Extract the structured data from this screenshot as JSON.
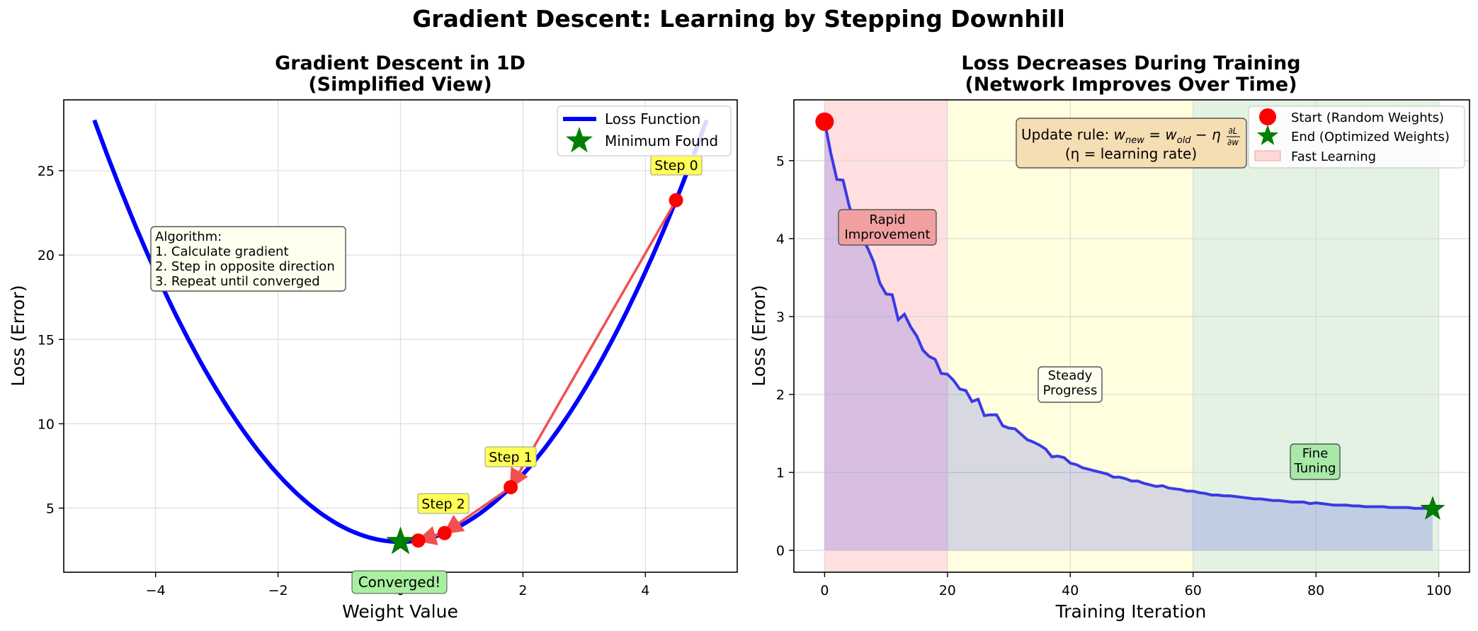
{
  "suptitle": "Gradient Descent: Learning by Stepping Downhill",
  "chart_data": [
    {
      "type": "line",
      "title_line1": "Gradient Descent in 1D",
      "title_line2": "(Simplified View)",
      "xlabel": "Weight Value",
      "ylabel": "Loss (Error)",
      "xlim": [
        -5.5,
        5.5
      ],
      "ylim": [
        1.2,
        29.2
      ],
      "xticks": [
        -4,
        -2,
        0,
        2,
        4
      ],
      "xtick_labels": [
        "−4",
        "−2",
        "0",
        "2",
        "4"
      ],
      "yticks": [
        5,
        10,
        15,
        20,
        25
      ],
      "ytick_labels": [
        "5",
        "10",
        "15",
        "20",
        "25"
      ],
      "grid": true,
      "loss_function": {
        "formula": "x^2 + 3",
        "x_range": [
          -5,
          5
        ],
        "color": "#0000ff"
      },
      "series": [
        {
          "name": "Loss Function",
          "color": "#0000ff"
        },
        {
          "name": "Minimum Found",
          "color": "#008000",
          "marker": "star",
          "x": 0,
          "y": 3
        }
      ],
      "steps": [
        {
          "label": "Step 0",
          "x": 4.5,
          "y": 23.25
        },
        {
          "label": "Step 1",
          "x": 1.8,
          "y": 6.24
        },
        {
          "label": "Step 2",
          "x": 0.72,
          "y": 3.52
        },
        {
          "label": "",
          "x": 0.29,
          "y": 3.08
        }
      ],
      "step_color": "#ff0000",
      "arrow_color": "#f05050",
      "algorithm_box": {
        "lines": [
          "Algorithm:",
          "1. Calculate gradient",
          "2. Step in opposite direction",
          "3. Repeat until converged"
        ]
      },
      "converged_label": "Converged!",
      "legend_position": "upper right"
    },
    {
      "type": "line",
      "title_line1": "Loss Decreases During Training",
      "title_line2": "(Network Improves Over Time)",
      "xlabel": "Training Iteration",
      "ylabel": "Loss (Error)",
      "xlim": [
        -5,
        105
      ],
      "ylim": [
        -0.28,
        5.78
      ],
      "xticks": [
        0,
        20,
        40,
        60,
        80,
        100
      ],
      "xtick_labels": [
        "0",
        "20",
        "40",
        "60",
        "80",
        "100"
      ],
      "yticks": [
        0,
        1,
        2,
        3,
        4,
        5
      ],
      "ytick_labels": [
        "0",
        "1",
        "2",
        "3",
        "4",
        "5"
      ],
      "grid": true,
      "regions": [
        {
          "name": "Fast Learning",
          "x": [
            0,
            20
          ],
          "color": "#ffc0c0"
        },
        {
          "x": [
            20,
            60
          ],
          "color": "#ffffc0"
        },
        {
          "x": [
            60,
            100
          ],
          "color": "#c8e6c8"
        }
      ],
      "loss_curve": {
        "x": [
          0,
          1,
          2,
          3,
          4,
          5,
          6,
          7,
          8,
          9,
          10,
          11,
          12,
          13,
          14,
          15,
          16,
          17,
          18,
          19,
          20,
          21,
          22,
          23,
          24,
          25,
          26,
          27,
          28,
          29,
          30,
          31,
          32,
          33,
          34,
          35,
          36,
          37,
          38,
          39,
          40,
          41,
          42,
          43,
          44,
          45,
          46,
          47,
          48,
          49,
          50,
          51,
          52,
          53,
          54,
          55,
          56,
          57,
          58,
          59,
          60,
          61,
          62,
          63,
          64,
          65,
          66,
          67,
          68,
          69,
          70,
          71,
          72,
          73,
          74,
          75,
          76,
          77,
          78,
          79,
          80,
          81,
          82,
          83,
          84,
          85,
          86,
          87,
          88,
          89,
          90,
          91,
          92,
          93,
          94,
          95,
          96,
          97,
          98,
          99
        ],
        "y": [
          5.5,
          5.1,
          4.76,
          4.75,
          4.42,
          4.18,
          4.02,
          3.88,
          3.7,
          3.43,
          3.29,
          3.28,
          2.96,
          3.03,
          2.87,
          2.75,
          2.57,
          2.49,
          2.45,
          2.27,
          2.26,
          2.18,
          2.07,
          2.05,
          1.91,
          1.94,
          1.73,
          1.74,
          1.74,
          1.6,
          1.57,
          1.56,
          1.49,
          1.42,
          1.39,
          1.35,
          1.3,
          1.2,
          1.21,
          1.19,
          1.12,
          1.1,
          1.06,
          1.04,
          1.02,
          1.0,
          0.98,
          0.94,
          0.94,
          0.92,
          0.89,
          0.89,
          0.86,
          0.84,
          0.82,
          0.83,
          0.8,
          0.79,
          0.78,
          0.76,
          0.76,
          0.74,
          0.73,
          0.71,
          0.71,
          0.7,
          0.7,
          0.69,
          0.68,
          0.67,
          0.66,
          0.66,
          0.65,
          0.64,
          0.64,
          0.63,
          0.62,
          0.62,
          0.62,
          0.6,
          0.61,
          0.6,
          0.59,
          0.58,
          0.58,
          0.58,
          0.57,
          0.57,
          0.56,
          0.56,
          0.56,
          0.56,
          0.55,
          0.55,
          0.55,
          0.55,
          0.54,
          0.54,
          0.54,
          0.53
        ],
        "color": "#3a3ae6"
      },
      "series": [
        {
          "name": "Start (Random Weights)",
          "color": "#ff0000",
          "marker": "circle",
          "x": 0,
          "y": 5.5
        },
        {
          "name": "End (Optimized Weights)",
          "color": "#008000",
          "marker": "star",
          "x": 99,
          "y": 0.53
        },
        {
          "name": "Fast Learning",
          "color": "#ffc0c0",
          "marker": "patch"
        }
      ],
      "annotations": [
        {
          "lines": [
            "Rapid",
            "Improvement"
          ],
          "x": 10,
          "y": 4.15,
          "bg": "#f0a0a0"
        },
        {
          "lines": [
            "Steady",
            "Progress"
          ],
          "x": 40,
          "y": 2.15,
          "bg": "#fffff0"
        },
        {
          "lines": [
            "Fine",
            "Tuning"
          ],
          "x": 80,
          "y": 1.15,
          "bg": "#a8e8a8"
        }
      ],
      "update_rule": {
        "prefix": "Update rule: ",
        "line2": "(η = learning rate)"
      },
      "legend_position": "upper right"
    }
  ]
}
